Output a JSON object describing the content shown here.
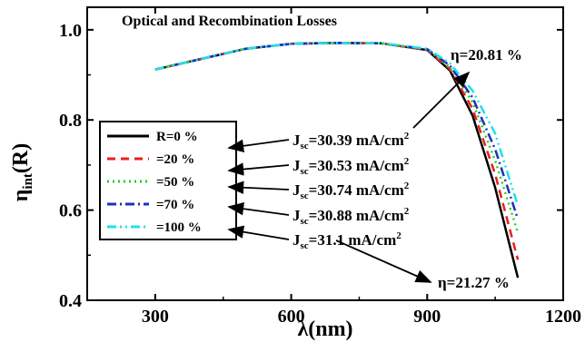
{
  "chart_data": {
    "type": "line",
    "title": "Optical and Recombination Losses",
    "xlabel": "λ(nm)",
    "ylabel_main": "η",
    "ylabel_sub": "int",
    "ylabel_tail": "(R)",
    "xlim": [
      150,
      1200
    ],
    "ylim": [
      0.4,
      1.05
    ],
    "xticks": [
      300,
      600,
      900,
      1200
    ],
    "yticks": [
      0.4,
      0.6,
      0.8,
      1.0
    ],
    "yticklabels": [
      "0.4",
      "0.6",
      "0.8",
      "1.0"
    ],
    "x": [
      300,
      400,
      500,
      600,
      700,
      800,
      900,
      950,
      1000,
      1050,
      1100
    ],
    "series": [
      {
        "name": "R=0 %",
        "color": "#000000",
        "dash": "",
        "values": [
          0.912,
          0.935,
          0.958,
          0.969,
          0.971,
          0.97,
          0.955,
          0.91,
          0.81,
          0.65,
          0.45
        ]
      },
      {
        "name": "=20 %",
        "color": "#e8201e",
        "dash": "9,6",
        "values": [
          0.912,
          0.935,
          0.958,
          0.969,
          0.971,
          0.97,
          0.955,
          0.913,
          0.825,
          0.68,
          0.49
        ]
      },
      {
        "name": "=50 %",
        "color": "#1fd21f",
        "dash": "2,4",
        "values": [
          0.912,
          0.935,
          0.958,
          0.969,
          0.971,
          0.97,
          0.956,
          0.917,
          0.84,
          0.71,
          0.55
        ]
      },
      {
        "name": "=70 %",
        "color": "#1f2fbf",
        "dash": "10,4,2,4",
        "values": [
          0.912,
          0.935,
          0.958,
          0.969,
          0.971,
          0.97,
          0.957,
          0.921,
          0.85,
          0.735,
          0.58
        ]
      },
      {
        "name": "=100 %",
        "color": "#1fe0ea",
        "dash": "10,4,2,4,2,4",
        "values": [
          0.912,
          0.935,
          0.958,
          0.969,
          0.971,
          0.97,
          0.958,
          0.926,
          0.865,
          0.77,
          0.61
        ]
      }
    ],
    "legend_position": "center-left",
    "jsc_prefix": "J",
    "jsc_sub": "sc",
    "jsc_unit": "mA/cm",
    "jsc_sup": "2",
    "jsc_values": [
      "=30.39",
      "=30.53",
      "=30.74",
      "=30.88",
      "=31.1"
    ],
    "eta_top": "η=20.81 %",
    "eta_bottom": "η=21.27 %"
  }
}
